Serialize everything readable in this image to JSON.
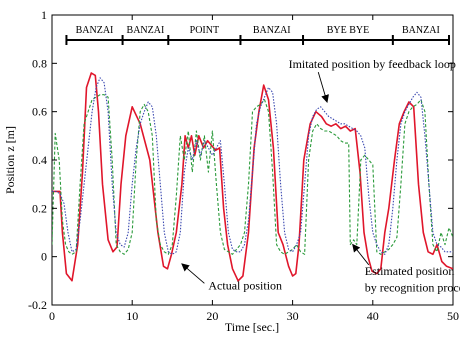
{
  "chart_data": {
    "type": "line",
    "title": "",
    "xlabel": "Time [sec.]",
    "ylabel": "Position z [m]",
    "xlim": [
      0,
      50
    ],
    "ylim": [
      -0.2,
      1.0
    ],
    "xticks": [
      0,
      10,
      20,
      30,
      40,
      50
    ],
    "yticks": [
      -0.2,
      0,
      0.2,
      0.4,
      0.6,
      0.8,
      1
    ],
    "ytick_labels": [
      "-0.2",
      "0",
      "0.2",
      "0.4",
      "0.6",
      "0.8",
      "1"
    ],
    "grid": false,
    "segments": [
      {
        "label": "BANZAI",
        "start": 1.8,
        "end": 8.8
      },
      {
        "label": "BANZAI",
        "start": 8.8,
        "end": 14.5
      },
      {
        "label": "POINT",
        "start": 14.5,
        "end": 23.5
      },
      {
        "label": "BANZAI",
        "start": 23.5,
        "end": 31.3
      },
      {
        "label": "BYE BYE",
        "start": 31.3,
        "end": 42.5
      },
      {
        "label": "BANZAI",
        "start": 42.5,
        "end": 49.5
      }
    ],
    "series": [
      {
        "color": "#e0162b",
        "dash": "solid",
        "x": [
          0,
          1,
          1.3,
          1.8,
          2.5,
          3.2,
          3.8,
          4.3,
          4.9,
          5.4,
          5.8,
          6.3,
          7.0,
          7.6,
          8.1,
          8.6,
          9.2,
          10.0,
          11.0,
          12.2,
          13.2,
          13.9,
          14.4,
          14.9,
          15.5,
          16.2,
          16.6,
          17.0,
          17.4,
          17.8,
          18.3,
          18.9,
          19.4,
          19.9,
          20.4,
          20.9,
          21.4,
          21.9,
          22.5,
          23.2,
          23.8,
          24.5,
          25.2,
          25.8,
          26.4,
          27.0,
          27.6,
          28.2,
          28.8,
          29.5,
          30.0,
          30.4,
          30.8,
          31.4,
          32.2,
          32.9,
          33.6,
          34.2,
          34.8,
          35.4,
          36.0,
          36.6,
          37.2,
          37.8,
          38.4,
          38.9,
          39.4,
          39.9,
          40.5,
          41.0,
          41.5,
          42.0,
          42.7,
          43.3,
          43.9,
          44.5,
          45.1,
          45.7,
          46.3,
          46.9,
          47.5,
          48.0,
          48.6,
          49.2,
          50.0
        ],
        "y": [
          0.27,
          0.27,
          0.1,
          -0.07,
          -0.1,
          0.05,
          0.35,
          0.7,
          0.76,
          0.75,
          0.6,
          0.3,
          0.07,
          0.02,
          0.04,
          0.3,
          0.5,
          0.62,
          0.55,
          0.4,
          0.1,
          -0.04,
          -0.05,
          0.01,
          0.1,
          0.3,
          0.5,
          0.45,
          0.5,
          0.42,
          0.5,
          0.45,
          0.48,
          0.46,
          0.44,
          0.45,
          0.2,
          0.05,
          -0.05,
          -0.1,
          -0.08,
          0.1,
          0.45,
          0.6,
          0.71,
          0.65,
          0.45,
          0.1,
          0.05,
          -0.04,
          -0.08,
          -0.07,
          0.05,
          0.4,
          0.55,
          0.6,
          0.58,
          0.55,
          0.54,
          0.55,
          0.53,
          0.54,
          0.52,
          0.53,
          0.35,
          0.1,
          0.0,
          -0.06,
          -0.07,
          -0.05,
          0.1,
          0.2,
          0.4,
          0.55,
          0.6,
          0.64,
          0.62,
          0.3,
          0.1,
          0.02,
          0.01,
          0.05,
          -0.02,
          -0.04,
          -0.05
        ]
      },
      {
        "color": "#2a9a3a",
        "dash": "3,2",
        "x": [
          0,
          0.4,
          0.9,
          1.3,
          1.7,
          2.1,
          2.5,
          3.0,
          3.5,
          4.0,
          4.5,
          5.0,
          5.5,
          6.0,
          6.5,
          7.0,
          7.5,
          8.0,
          8.5,
          9.0,
          9.5,
          10.0,
          10.5,
          11.0,
          11.5,
          12.0,
          12.5,
          13.0,
          13.5,
          14.0,
          14.5,
          15.0,
          15.5,
          16.0,
          16.5,
          17.0,
          17.5,
          18.0,
          18.5,
          19.0,
          19.5,
          20.0,
          20.5,
          21.0,
          21.5,
          22.0,
          22.5,
          23.0,
          23.5,
          24.0,
          24.5,
          25.0,
          25.5,
          26.0,
          26.5,
          27.0,
          27.5,
          28.0,
          28.5,
          29.0,
          29.5,
          30.0,
          30.5,
          31.0,
          31.5,
          32.0,
          32.5,
          33.0,
          33.5,
          34.0,
          34.5,
          35.0,
          35.5,
          36.0,
          36.5,
          37.0,
          37.2,
          37.6,
          38.0,
          38.5,
          39.0,
          39.5,
          40.0,
          40.5,
          41.0,
          41.5,
          42.0,
          42.5,
          43.0,
          43.5,
          44.0,
          44.5,
          45.0,
          45.5,
          46.0,
          46.5,
          47.0,
          47.5,
          48.0,
          48.5,
          49.0,
          49.5,
          50.0
        ],
        "y": [
          0.05,
          0.51,
          0.4,
          0.15,
          0.05,
          0.02,
          0.01,
          0.02,
          0.3,
          0.55,
          0.6,
          0.65,
          0.66,
          0.67,
          0.67,
          0.66,
          0.4,
          0.05,
          0.02,
          0.01,
          0.03,
          0.1,
          0.4,
          0.6,
          0.63,
          0.6,
          0.5,
          0.15,
          0.05,
          0.02,
          0.01,
          0.05,
          0.25,
          0.5,
          0.4,
          0.52,
          0.35,
          0.52,
          0.4,
          0.5,
          0.35,
          0.52,
          0.3,
          0.1,
          0.03,
          0.02,
          0.01,
          0.03,
          0.05,
          0.1,
          0.3,
          0.6,
          0.62,
          0.63,
          0.65,
          0.6,
          0.35,
          0.05,
          0.02,
          0.01,
          0.02,
          0.03,
          0.05,
          0.02,
          0.01,
          0.4,
          0.52,
          0.55,
          0.53,
          0.52,
          0.52,
          0.51,
          0.5,
          0.48,
          0.47,
          0.47,
          0.05,
          0.07,
          0.05,
          0.4,
          0.42,
          0.4,
          0.38,
          0.02,
          0.01,
          0.02,
          0.03,
          0.05,
          0.08,
          0.3,
          0.55,
          0.6,
          0.62,
          0.63,
          0.65,
          0.6,
          0.3,
          0.05,
          0.02,
          0.1,
          0.05,
          0.12,
          0.08
        ]
      },
      {
        "color": "#3a48b0",
        "dash": "1.5,1.5",
        "x": [
          0,
          0.5,
          1.0,
          1.5,
          2.0,
          2.5,
          3.0,
          3.5,
          4.0,
          4.5,
          5.0,
          5.5,
          6.0,
          6.5,
          7.0,
          7.5,
          8.0,
          8.5,
          9.0,
          9.5,
          10.0,
          10.5,
          11.0,
          11.5,
          12.0,
          12.5,
          13.0,
          13.5,
          14.0,
          14.5,
          15.0,
          15.5,
          16.0,
          16.5,
          17.0,
          17.5,
          18.0,
          18.5,
          19.0,
          19.5,
          20.0,
          20.5,
          21.0,
          21.5,
          22.0,
          22.5,
          23.0,
          23.5,
          24.0,
          24.5,
          25.0,
          25.5,
          26.0,
          26.5,
          27.0,
          27.5,
          28.0,
          28.5,
          29.0,
          29.5,
          30.0,
          30.5,
          31.0,
          31.5,
          32.0,
          32.5,
          33.0,
          33.5,
          34.0,
          34.5,
          35.0,
          35.5,
          36.0,
          36.5,
          37.0,
          37.5,
          38.0,
          38.5,
          39.0,
          39.5,
          40.0,
          40.5,
          41.0,
          41.5,
          42.0,
          42.5,
          43.0,
          43.5,
          44.0,
          44.5,
          45.0,
          45.5,
          46.0,
          46.5,
          47.0,
          47.5,
          48.0,
          48.5,
          49.0,
          49.5,
          50.0
        ],
        "y": [
          0.27,
          0.27,
          0.26,
          0.22,
          0.1,
          0.02,
          0.03,
          0.15,
          0.3,
          0.45,
          0.6,
          0.7,
          0.74,
          0.72,
          0.6,
          0.3,
          0.1,
          0.05,
          0.04,
          0.1,
          0.3,
          0.45,
          0.55,
          0.6,
          0.64,
          0.62,
          0.5,
          0.3,
          0.1,
          0.02,
          0.01,
          0.02,
          0.1,
          0.35,
          0.45,
          0.4,
          0.48,
          0.42,
          0.48,
          0.45,
          0.42,
          0.45,
          0.48,
          0.3,
          0.1,
          0.03,
          0.02,
          0.02,
          0.05,
          0.15,
          0.35,
          0.55,
          0.62,
          0.66,
          0.7,
          0.68,
          0.55,
          0.3,
          0.1,
          0.03,
          0.02,
          0.05,
          0.1,
          0.3,
          0.5,
          0.58,
          0.61,
          0.62,
          0.6,
          0.58,
          0.57,
          0.56,
          0.55,
          0.55,
          0.54,
          0.53,
          0.52,
          0.5,
          0.45,
          0.25,
          0.1,
          0.05,
          0.02,
          0.01,
          0.05,
          0.2,
          0.4,
          0.55,
          0.6,
          0.63,
          0.66,
          0.68,
          0.66,
          0.5,
          0.3,
          0.1,
          0.05,
          0.04,
          0.02,
          0.02,
          0.02
        ]
      }
    ],
    "annotations": [
      {
        "text": "Imitated position by feedback loop",
        "text_x": 29.5,
        "text_y": 0.78,
        "arrow_x": 34.3,
        "arrow_y": 0.64
      },
      {
        "text": "Actual position",
        "text_x": 19.5,
        "text_y": -0.135,
        "arrow_x": 16.2,
        "arrow_y": -0.03
      },
      {
        "text": "Estimated position",
        "text_x": 39.0,
        "text_y": -0.075,
        "arrow_x": 37.5,
        "arrow_y": 0.05
      },
      {
        "text": "by recognition process",
        "text_x": 39.0,
        "text_y": -0.145
      }
    ]
  }
}
